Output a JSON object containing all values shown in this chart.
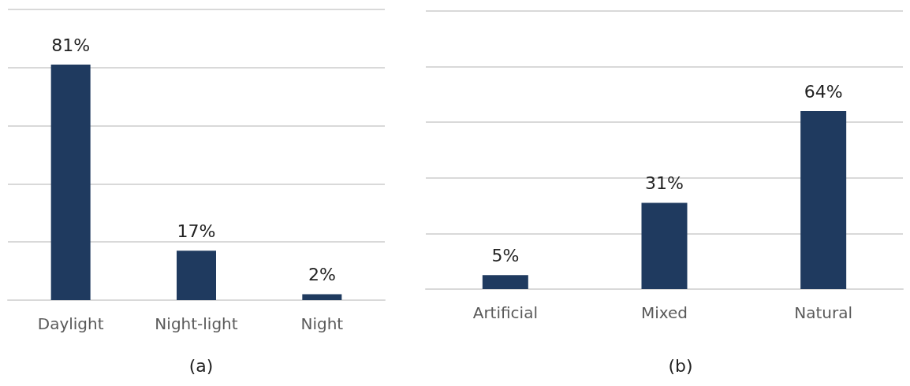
{
  "chart_data": [
    {
      "type": "bar",
      "title": "(a)",
      "categories": [
        "Daylight",
        "Night-light",
        "Night"
      ],
      "values": [
        81,
        17,
        2
      ],
      "value_labels": [
        "81%",
        "17%",
        "2%"
      ],
      "color": "#1f3a5f",
      "grid": true,
      "tick_labels": "x"
    },
    {
      "type": "bar",
      "title": "(b)",
      "categories": [
        "Artificial",
        "Mixed",
        "Natural"
      ],
      "values": [
        5,
        31,
        64
      ],
      "value_labels": [
        "5%",
        "31%",
        "64%"
      ],
      "color": "#1f3a5f",
      "grid": true,
      "tick_labels": "x"
    }
  ]
}
